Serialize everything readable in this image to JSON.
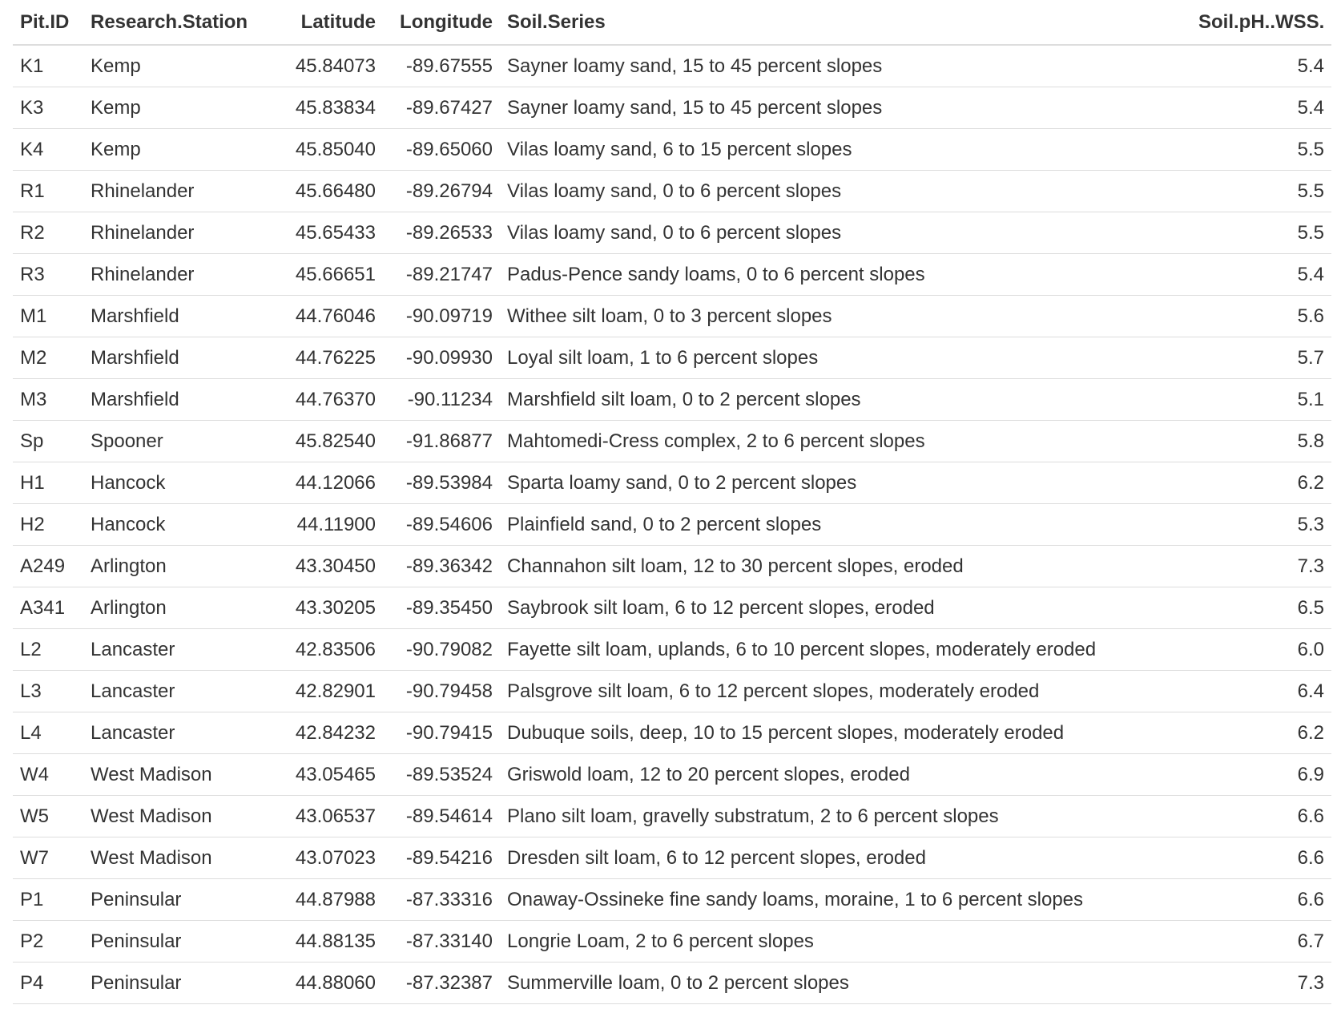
{
  "table": {
    "headers": [
      "Pit.ID",
      "Research.Station",
      "Latitude",
      "Longitude",
      "Soil.Series",
      "Soil.pH..WSS."
    ],
    "rows": [
      [
        "K1",
        "Kemp",
        "45.84073",
        "-89.67555",
        "Sayner loamy sand, 15 to 45 percent slopes",
        "5.4"
      ],
      [
        "K3",
        "Kemp",
        "45.83834",
        "-89.67427",
        "Sayner loamy sand, 15 to 45 percent slopes",
        "5.4"
      ],
      [
        "K4",
        "Kemp",
        "45.85040",
        "-89.65060",
        "Vilas loamy sand, 6 to 15 percent slopes",
        "5.5"
      ],
      [
        "R1",
        "Rhinelander",
        "45.66480",
        "-89.26794",
        "Vilas loamy sand, 0 to 6 percent slopes",
        "5.5"
      ],
      [
        "R2",
        "Rhinelander",
        "45.65433",
        "-89.26533",
        "Vilas loamy sand, 0 to 6 percent slopes",
        "5.5"
      ],
      [
        "R3",
        "Rhinelander",
        "45.66651",
        "-89.21747",
        "Padus-Pence sandy loams, 0 to 6 percent slopes",
        "5.4"
      ],
      [
        "M1",
        "Marshfield",
        "44.76046",
        "-90.09719",
        "Withee silt loam, 0 to 3 percent slopes",
        "5.6"
      ],
      [
        "M2",
        "Marshfield",
        "44.76225",
        "-90.09930",
        "Loyal silt loam, 1 to 6 percent slopes",
        "5.7"
      ],
      [
        "M3",
        "Marshfield",
        "44.76370",
        "-90.11234",
        "Marshfield silt loam, 0 to 2 percent slopes",
        "5.1"
      ],
      [
        "Sp",
        "Spooner",
        "45.82540",
        "-91.86877",
        "Mahtomedi-Cress complex, 2 to 6 percent slopes",
        "5.8"
      ],
      [
        "H1",
        "Hancock",
        "44.12066",
        "-89.53984",
        "Sparta loamy sand, 0 to 2 percent slopes",
        "6.2"
      ],
      [
        "H2",
        "Hancock",
        "44.11900",
        "-89.54606",
        "Plainfield sand, 0 to 2 percent slopes",
        "5.3"
      ],
      [
        "A249",
        "Arlington",
        "43.30450",
        "-89.36342",
        "Channahon silt loam, 12 to 30 percent slopes, eroded",
        "7.3"
      ],
      [
        "A341",
        "Arlington",
        "43.30205",
        "-89.35450",
        "Saybrook silt loam, 6 to 12 percent slopes, eroded",
        "6.5"
      ],
      [
        "L2",
        "Lancaster",
        "42.83506",
        "-90.79082",
        "Fayette silt loam, uplands, 6 to 10 percent slopes, moderately eroded",
        "6.0"
      ],
      [
        "L3",
        "Lancaster",
        "42.82901",
        "-90.79458",
        "Palsgrove silt loam, 6 to 12 percent slopes, moderately eroded",
        "6.4"
      ],
      [
        "L4",
        "Lancaster",
        "42.84232",
        "-90.79415",
        "Dubuque soils, deep, 10 to 15 percent slopes, moderately eroded",
        "6.2"
      ],
      [
        "W4",
        "West Madison",
        "43.05465",
        "-89.53524",
        "Griswold loam, 12 to 20 percent slopes, eroded",
        "6.9"
      ],
      [
        "W5",
        "West Madison",
        "43.06537",
        "-89.54614",
        "Plano silt loam, gravelly substratum, 2 to 6 percent slopes",
        "6.6"
      ],
      [
        "W7",
        "West Madison",
        "43.07023",
        "-89.54216",
        "Dresden silt loam, 6 to 12 percent slopes, eroded",
        "6.6"
      ],
      [
        "P1",
        "Peninsular",
        "44.87988",
        "-87.33316",
        "Onaway-Ossineke fine sandy loams, moraine, 1 to 6 percent slopes",
        "6.6"
      ],
      [
        "P2",
        "Peninsular",
        "44.88135",
        "-87.33140",
        "Longrie Loam, 2 to 6 percent slopes",
        "6.7"
      ],
      [
        "P4",
        "Peninsular",
        "44.88060",
        "-87.32387",
        "Summerville loam, 0 to 2 percent slopes",
        "7.3"
      ]
    ]
  }
}
